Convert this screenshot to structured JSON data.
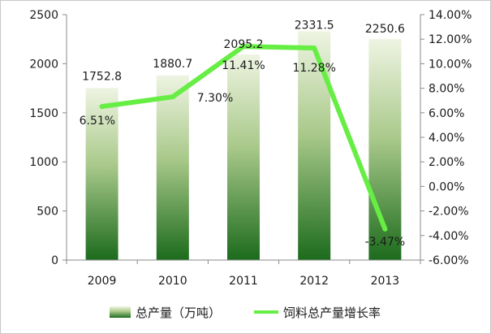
{
  "chart_data": {
    "type": "bar+line",
    "title": "",
    "categories": [
      "2009",
      "2010",
      "2011",
      "2012",
      "2013"
    ],
    "series": [
      {
        "name": "总产量（万吨）",
        "type": "bar",
        "axis": "left",
        "values": [
          1752.8,
          1880.7,
          2095.2,
          2331.5,
          2250.6
        ],
        "labels": [
          "1752.8",
          "1880.7",
          "2095.2",
          "2331.5",
          "2250.6"
        ]
      },
      {
        "name": "饲料总产量增长率",
        "type": "line",
        "axis": "right",
        "values": [
          6.51,
          7.3,
          11.41,
          11.28,
          -3.47
        ],
        "labels": [
          "6.51%",
          "7.30%",
          "11.41%",
          "11.28%",
          "-3.47%"
        ]
      }
    ],
    "y_left": {
      "min": 0,
      "max": 2500,
      "ticks": [
        "0",
        "500",
        "1000",
        "1500",
        "2000",
        "2500"
      ]
    },
    "y_right": {
      "min": -6,
      "max": 14,
      "ticks": [
        "-6.00%",
        "-4.00%",
        "-2.00%",
        "0.00%",
        "2.00%",
        "4.00%",
        "6.00%",
        "8.00%",
        "10.00%",
        "12.00%",
        "14.00%"
      ]
    },
    "grid": false,
    "legend_position": "bottom",
    "colors": {
      "bar_top": "#e8f0d8",
      "bar_bottom": "#1f6e1f",
      "line": "#66ee44",
      "axis": "#8a8a8a"
    }
  }
}
